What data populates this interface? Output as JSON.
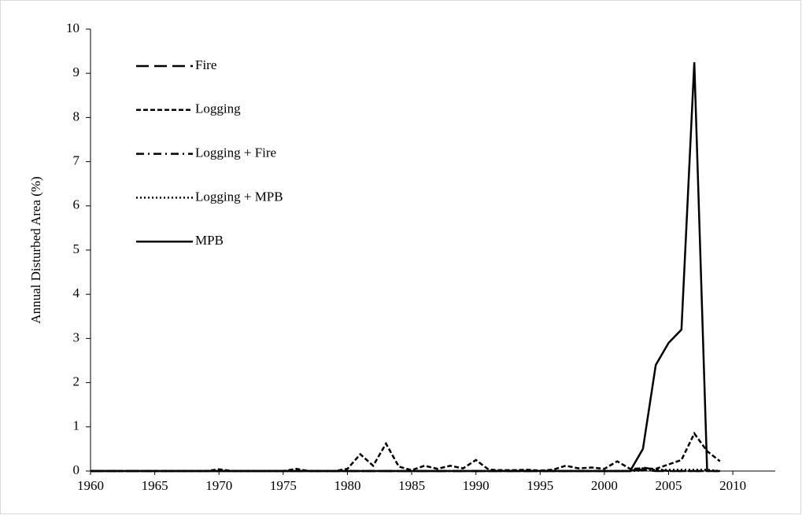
{
  "chart_data": {
    "type": "line",
    "y_label": "Annual Disturbed Area (%)",
    "x": [
      1960,
      1961,
      1962,
      1963,
      1964,
      1965,
      1966,
      1967,
      1968,
      1969,
      1970,
      1971,
      1972,
      1973,
      1974,
      1975,
      1976,
      1977,
      1978,
      1979,
      1980,
      1981,
      1982,
      1983,
      1984,
      1985,
      1986,
      1987,
      1988,
      1989,
      1990,
      1991,
      1992,
      1993,
      1994,
      1995,
      1996,
      1997,
      1998,
      1999,
      2000,
      2001,
      2002,
      2003,
      2004,
      2005,
      2006,
      2007,
      2008,
      2009
    ],
    "series": [
      {
        "name": "Fire",
        "color": "#000000",
        "dash": "16 7",
        "values": [
          0,
          0,
          0,
          0,
          0,
          0,
          0,
          0,
          0,
          0,
          0,
          0,
          0,
          0,
          0,
          0,
          0,
          0,
          0,
          0,
          0,
          0,
          0,
          0,
          0,
          0,
          0,
          0,
          0,
          0,
          0,
          0,
          0,
          0,
          0,
          0,
          0,
          0,
          0,
          0,
          0,
          0,
          0,
          0.03,
          0,
          0,
          0,
          0,
          0,
          0
        ]
      },
      {
        "name": "Logging",
        "color": "#000000",
        "dash": "6 3",
        "values": [
          0,
          0,
          0,
          0,
          0,
          0,
          0,
          0,
          0,
          0,
          0.04,
          0,
          0,
          0,
          0,
          0,
          0.05,
          0,
          0,
          0,
          0.05,
          0.38,
          0.12,
          0.62,
          0.1,
          0.02,
          0.12,
          0.05,
          0.12,
          0.06,
          0.25,
          0.03,
          0.02,
          0.02,
          0.03,
          0.01,
          0.03,
          0.12,
          0.06,
          0.08,
          0.05,
          0.22,
          0.05,
          0.06,
          0.05,
          0.15,
          0.25,
          0.85,
          0.45,
          0.22
        ]
      },
      {
        "name": "Logging + Fire",
        "color": "#000000",
        "dash": "10 5 2 5",
        "values": [
          0,
          0,
          0,
          0,
          0,
          0,
          0,
          0,
          0,
          0,
          0,
          0,
          0,
          0,
          0,
          0,
          0,
          0,
          0,
          0,
          0,
          0,
          0,
          0,
          0,
          0,
          0,
          0,
          0,
          0,
          0,
          0,
          0,
          0,
          0,
          0,
          0,
          0,
          0,
          0,
          0,
          0,
          0,
          0.08,
          0.03,
          0,
          0,
          0,
          0,
          0
        ]
      },
      {
        "name": "Logging + MPB",
        "color": "#000000",
        "dash": "2 3",
        "values": [
          0,
          0,
          0,
          0,
          0,
          0,
          0,
          0,
          0,
          0,
          0,
          0,
          0,
          0,
          0,
          0,
          0,
          0,
          0,
          0,
          0,
          0,
          0,
          0,
          0,
          0,
          0,
          0,
          0,
          0,
          0,
          0,
          0,
          0,
          0,
          0,
          0,
          0,
          0,
          0,
          0,
          0,
          0,
          0.01,
          0.03,
          0.03,
          0.03,
          0.03,
          0.03,
          0
        ]
      },
      {
        "name": "MPB",
        "color": "#000000",
        "dash": "none",
        "values": [
          0,
          0,
          0,
          0,
          0,
          0,
          0,
          0,
          0,
          0,
          0,
          0,
          0,
          0,
          0,
          0,
          0,
          0,
          0,
          0,
          0,
          0,
          0,
          0,
          0,
          0,
          0,
          0,
          0,
          0,
          0,
          0,
          0,
          0,
          0,
          0,
          0,
          0,
          0,
          0,
          0,
          0,
          0,
          0.5,
          2.4,
          2.9,
          3.2,
          9.25,
          0,
          null
        ]
      }
    ],
    "xlim": [
      1960,
      2013.3
    ],
    "xticks": [
      1960,
      1965,
      1970,
      1975,
      1980,
      1985,
      1990,
      1995,
      2000,
      2005,
      2010
    ],
    "ylim": [
      0,
      10
    ],
    "yticks": [
      0,
      1,
      2,
      3,
      4,
      5,
      6,
      7,
      8,
      9,
      10
    ],
    "legend": "top-left"
  }
}
